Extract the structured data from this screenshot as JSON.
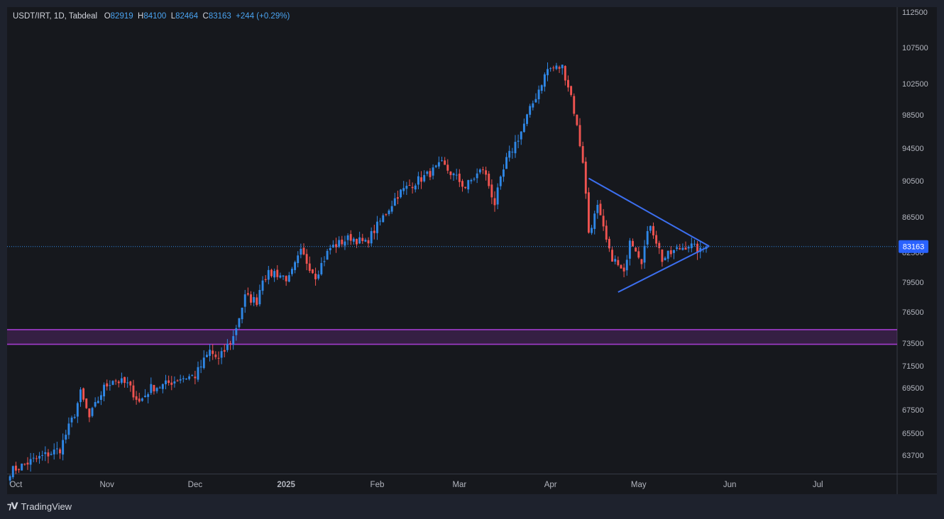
{
  "legend": {
    "symbol": "USDT/IRT, 1D, Tabdeal",
    "open_key": "O",
    "open": "82919",
    "high_key": "H",
    "high": "84100",
    "low_key": "L",
    "low": "82464",
    "close_key": "C",
    "close": "83163",
    "change": "+244 (+0.29%)"
  },
  "branding": {
    "label": "TradingView"
  },
  "colors": {
    "up": "#2f87e6",
    "down": "#ef5350",
    "zone": "#a23bcc",
    "triangle": "#3c6ff0",
    "bg": "#16181d"
  },
  "chart_data": {
    "type": "candlestick",
    "title": "",
    "y_ticks": [
      "112500",
      "107500",
      "102500",
      "98500",
      "94500",
      "90500",
      "86500",
      "82500",
      "79500",
      "76500",
      "73500",
      "71500",
      "69500",
      "67500",
      "65500",
      "63700"
    ],
    "x_ticks": [
      {
        "label": "Oct",
        "date": "2024-10-01"
      },
      {
        "label": "Nov",
        "date": "2024-11-01"
      },
      {
        "label": "Dec",
        "date": "2024-12-01"
      },
      {
        "label": "2025",
        "date": "2025-01-01",
        "bold": true
      },
      {
        "label": "Feb",
        "date": "2025-02-01"
      },
      {
        "label": "Mar",
        "date": "2025-03-01"
      },
      {
        "label": "Apr",
        "date": "2025-04-01"
      },
      {
        "label": "May",
        "date": "2025-05-01"
      },
      {
        "label": "Jun",
        "date": "2025-06-01"
      },
      {
        "label": "Jul",
        "date": "2025-07-01"
      }
    ],
    "last_price": "83163",
    "zone": {
      "upper": 74800,
      "lower": 73400
    },
    "triangle": {
      "upper_line": [
        [
          "2025-04-14",
          90800
        ],
        [
          "2025-05-25",
          83200
        ]
      ],
      "lower_line": [
        [
          "2025-04-24",
          78500
        ],
        [
          "2025-05-25",
          83200
        ]
      ]
    },
    "anchors": [
      [
        "2024-09-29",
        62400
      ],
      [
        "2024-10-06",
        63200
      ],
      [
        "2024-10-12",
        63800
      ],
      [
        "2024-10-16",
        64200
      ],
      [
        "2024-10-21",
        67200
      ],
      [
        "2024-10-23",
        69000
      ],
      [
        "2024-10-26",
        66800
      ],
      [
        "2024-10-31",
        69500
      ],
      [
        "2024-11-03",
        70300
      ],
      [
        "2024-11-08",
        69800
      ],
      [
        "2024-11-12",
        68200
      ],
      [
        "2024-11-16",
        69500
      ],
      [
        "2024-11-20",
        69700
      ],
      [
        "2024-11-26",
        70400
      ],
      [
        "2024-12-01",
        70600
      ],
      [
        "2024-12-06",
        72800
      ],
      [
        "2024-12-09",
        72000
      ],
      [
        "2024-12-14",
        74100
      ],
      [
        "2024-12-18",
        78000
      ],
      [
        "2024-12-22",
        77600
      ],
      [
        "2024-12-24",
        80000
      ],
      [
        "2024-12-28",
        80500
      ],
      [
        "2025-01-02",
        79800
      ],
      [
        "2025-01-06",
        82500
      ],
      [
        "2025-01-11",
        80200
      ],
      [
        "2025-01-16",
        83000
      ],
      [
        "2025-01-23",
        84200
      ],
      [
        "2025-01-28",
        83500
      ],
      [
        "2025-02-03",
        86500
      ],
      [
        "2025-02-08",
        89000
      ],
      [
        "2025-02-13",
        90200
      ],
      [
        "2025-02-18",
        91200
      ],
      [
        "2025-02-23",
        92500
      ],
      [
        "2025-03-03",
        89800
      ],
      [
        "2025-03-09",
        92000
      ],
      [
        "2025-03-13",
        88000
      ],
      [
        "2025-03-17",
        93000
      ],
      [
        "2025-03-22",
        96500
      ],
      [
        "2025-03-26",
        100000
      ],
      [
        "2025-03-31",
        104500
      ],
      [
        "2025-04-05",
        104800
      ],
      [
        "2025-04-08",
        101000
      ],
      [
        "2025-04-12",
        93000
      ],
      [
        "2025-04-14",
        84800
      ],
      [
        "2025-04-17",
        87500
      ],
      [
        "2025-04-21",
        82500
      ],
      [
        "2025-04-26",
        80200
      ],
      [
        "2025-04-28",
        84200
      ],
      [
        "2025-05-02",
        81800
      ],
      [
        "2025-05-05",
        85800
      ],
      [
        "2025-05-09",
        81800
      ],
      [
        "2025-05-14",
        82800
      ],
      [
        "2025-05-18",
        83400
      ],
      [
        "2025-05-22",
        82600
      ],
      [
        "2025-05-24",
        83163
      ]
    ]
  }
}
